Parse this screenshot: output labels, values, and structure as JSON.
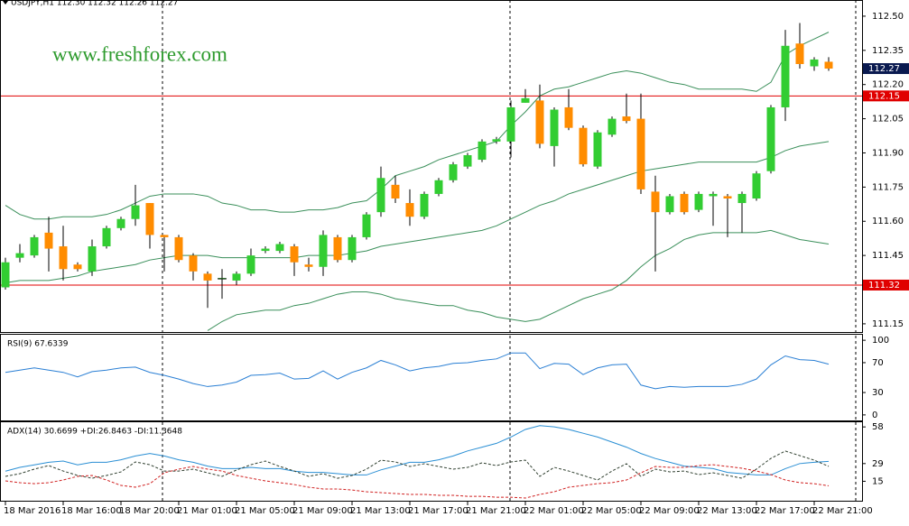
{
  "chart_data": [
    {
      "type": "candlestick",
      "title": "USDJPY,H1  112.30 112.32 112.26 112.27",
      "watermark": "www.freshforex.com",
      "categories": [
        "18 Mar 2016",
        null,
        null,
        null,
        "18 Mar 16:00",
        null,
        null,
        null,
        "18 Mar 20:00",
        null,
        null,
        null,
        "21 Mar 01:00",
        null,
        null,
        null,
        "21 Mar 05:00",
        null,
        null,
        null,
        "21 Mar 09:00",
        null,
        null,
        null,
        "21 Mar 13:00",
        null,
        null,
        null,
        "21 Mar 17:00",
        null,
        null,
        null,
        "21 Mar 21:00",
        null,
        null,
        null,
        "22 Mar 01:00",
        null,
        null,
        null,
        "22 Mar 05:00",
        null,
        null,
        null,
        "22 Mar 09:00",
        null,
        null,
        null,
        "22 Mar 13:00",
        null,
        null,
        null,
        "22 Mar 17:00",
        null,
        null,
        null,
        "22 Mar 21:00",
        null
      ],
      "open": [
        111.31,
        111.44,
        111.45,
        111.55,
        111.49,
        111.41,
        111.38,
        111.49,
        111.57,
        111.61,
        111.68,
        111.54,
        111.53,
        111.45,
        111.37,
        111.35,
        111.34,
        111.37,
        111.47,
        111.47,
        111.49,
        111.41,
        111.4,
        111.53,
        111.43,
        111.53,
        111.64,
        111.76,
        111.68,
        111.62,
        111.72,
        111.78,
        111.84,
        111.87,
        111.95,
        111.95,
        112.12,
        112.13,
        111.93,
        112.1,
        112.01,
        111.84,
        111.98,
        112.06,
        112.05,
        111.73,
        111.64,
        111.72,
        111.65,
        111.71,
        111.71,
        111.68,
        111.7,
        111.82,
        112.1,
        112.38,
        112.28,
        112.3
      ],
      "high": [
        111.44,
        111.5,
        111.54,
        111.62,
        111.58,
        111.42,
        111.52,
        111.58,
        111.62,
        111.76,
        111.68,
        111.54,
        111.54,
        111.46,
        111.38,
        111.39,
        111.38,
        111.48,
        111.49,
        111.51,
        111.5,
        111.44,
        111.56,
        111.54,
        111.54,
        111.64,
        111.84,
        111.8,
        111.74,
        111.73,
        111.79,
        111.86,
        111.9,
        111.96,
        111.97,
        112.13,
        112.18,
        112.2,
        112.1,
        112.18,
        112.02,
        112.0,
        112.06,
        112.16,
        112.16,
        111.8,
        111.72,
        111.73,
        111.73,
        111.73,
        111.72,
        111.73,
        111.82,
        112.11,
        112.44,
        112.47,
        112.32,
        112.32
      ],
      "low": [
        111.3,
        111.42,
        111.44,
        111.38,
        111.34,
        111.38,
        111.36,
        111.48,
        111.56,
        111.58,
        111.48,
        111.38,
        111.42,
        111.34,
        111.22,
        111.26,
        111.32,
        111.36,
        111.46,
        111.46,
        111.36,
        111.38,
        111.36,
        111.42,
        111.42,
        111.52,
        111.62,
        111.68,
        111.58,
        111.61,
        111.71,
        111.77,
        111.83,
        111.86,
        111.94,
        111.88,
        112.12,
        111.92,
        111.84,
        112.0,
        111.84,
        111.83,
        111.97,
        112.03,
        111.72,
        111.38,
        111.63,
        111.63,
        111.64,
        111.58,
        111.53,
        111.55,
        111.69,
        111.81,
        112.04,
        112.27,
        112.26,
        112.26
      ],
      "close": [
        111.42,
        111.46,
        111.53,
        111.48,
        111.39,
        111.39,
        111.49,
        111.57,
        111.61,
        111.67,
        111.54,
        111.53,
        111.43,
        111.38,
        111.34,
        111.35,
        111.37,
        111.45,
        111.48,
        111.5,
        111.42,
        111.4,
        111.54,
        111.43,
        111.53,
        111.63,
        111.79,
        111.7,
        111.62,
        111.72,
        111.78,
        111.85,
        111.89,
        111.95,
        111.96,
        112.1,
        112.14,
        111.94,
        112.09,
        112.01,
        111.85,
        111.99,
        112.05,
        112.04,
        111.74,
        111.64,
        111.71,
        111.64,
        111.72,
        111.72,
        111.7,
        111.72,
        111.81,
        112.1,
        112.37,
        112.29,
        112.31,
        112.27
      ],
      "up_color": "#32cd32",
      "down_color": "#ff8c00",
      "bands": [
        {
          "color": "#3a8f5a",
          "values": [
            111.67,
            111.63,
            111.61,
            111.61,
            111.62,
            111.62,
            111.62,
            111.63,
            111.65,
            111.68,
            111.71,
            111.72,
            111.72,
            111.72,
            111.71,
            111.68,
            111.67,
            111.65,
            111.65,
            111.64,
            111.64,
            111.65,
            111.65,
            111.66,
            111.68,
            111.69,
            111.74,
            111.8,
            111.82,
            111.84,
            111.87,
            111.89,
            111.91,
            111.93,
            111.95,
            112.02,
            112.08,
            112.15,
            112.18,
            112.19,
            112.21,
            112.23,
            112.25,
            112.26,
            112.25,
            112.23,
            112.21,
            112.2,
            112.18,
            112.18,
            112.18,
            112.18,
            112.17,
            112.21,
            112.33,
            112.37,
            112.4,
            112.43
          ]
        },
        {
          "color": "#3a8f5a",
          "values": [
            111.33,
            111.34,
            111.34,
            111.34,
            111.35,
            111.36,
            111.38,
            111.39,
            111.4,
            111.41,
            111.43,
            111.44,
            111.45,
            111.45,
            111.45,
            111.44,
            111.44,
            111.44,
            111.44,
            111.44,
            111.44,
            111.45,
            111.45,
            111.45,
            111.46,
            111.47,
            111.49,
            111.5,
            111.51,
            111.52,
            111.53,
            111.54,
            111.55,
            111.56,
            111.58,
            111.61,
            111.64,
            111.67,
            111.69,
            111.72,
            111.74,
            111.76,
            111.78,
            111.8,
            111.82,
            111.83,
            111.84,
            111.85,
            111.86,
            111.86,
            111.86,
            111.86,
            111.86,
            111.88,
            111.91,
            111.93,
            111.94,
            111.95
          ]
        },
        {
          "color": "#3a8f5a",
          "values": [
            null,
            null,
            null,
            null,
            null,
            null,
            null,
            null,
            null,
            null,
            null,
            null,
            null,
            null,
            111.12,
            111.16,
            111.19,
            111.2,
            111.21,
            111.21,
            111.23,
            111.24,
            111.26,
            111.28,
            111.29,
            111.29,
            111.28,
            111.26,
            111.25,
            111.24,
            111.23,
            111.23,
            111.21,
            111.2,
            111.18,
            111.17,
            111.16,
            111.17,
            111.2,
            111.23,
            111.26,
            111.28,
            111.3,
            111.34,
            111.4,
            111.45,
            111.48,
            111.52,
            111.54,
            111.55,
            111.55,
            111.55,
            111.55,
            111.56,
            111.54,
            111.52,
            111.51,
            111.5
          ]
        }
      ],
      "levels": [
        112.15,
        111.32
      ],
      "level_color": "#e00000",
      "ylim": [
        111.114,
        112.571
      ],
      "yticks": [
        111.15,
        111.45,
        {
          "value": 111.6,
          "label": "111.60"
        },
        111.75,
        {
          "value": 111.9,
          "label": "111.90"
        },
        112.05,
        {
          "value": 112.2,
          "label": "112.20"
        },
        112.35,
        {
          "value": 112.5,
          "label": "112.50"
        }
      ]
    },
    {
      "type": "line",
      "title": "RSI(9) 67.6339",
      "series": [
        {
          "color": "#2a7fd4",
          "values": [
            57,
            60,
            63,
            60,
            57,
            51,
            58,
            60,
            63,
            64,
            57,
            53,
            48,
            42,
            38,
            40,
            44,
            53,
            54,
            56,
            48,
            49,
            59,
            48,
            57,
            63,
            73,
            67,
            59,
            63,
            65,
            69,
            70,
            73,
            75,
            83,
            83,
            62,
            69,
            68,
            54,
            63,
            67,
            68,
            40,
            35,
            38,
            37,
            38,
            38,
            38,
            41,
            48,
            67,
            79,
            74,
            73,
            68
          ]
        }
      ],
      "ylim": [
        -7.4,
        107.4
      ],
      "yticks": [
        0,
        30,
        70,
        100
      ]
    },
    {
      "type": "line",
      "title": "ADX(14) 30.6699 +DI:26.8463 -DI:11.3648",
      "series": [
        {
          "color": "#2a8fd4",
          "dashed": false,
          "values": [
            23,
            26,
            28,
            30,
            31,
            28,
            30,
            30,
            32,
            35,
            37,
            35,
            32,
            30,
            27,
            25,
            25,
            26,
            25,
            25,
            23,
            22,
            22,
            21,
            20,
            20,
            24,
            27,
            30,
            30,
            32,
            35,
            39,
            42,
            45,
            50,
            56,
            59,
            58,
            56,
            53,
            50,
            46,
            42,
            37,
            33,
            30,
            27,
            26,
            25,
            22,
            21,
            20,
            20,
            25,
            29,
            30,
            30.7
          ]
        },
        {
          "color": "#2f3f2f",
          "dashed": true,
          "values": [
            18.9,
            21,
            24.6,
            27.4,
            23.1,
            19.6,
            17.4,
            19.6,
            22.4,
            30.3,
            28.1,
            23.1,
            23.1,
            24.6,
            21.7,
            18.9,
            23.9,
            28.1,
            31,
            26.7,
            23.1,
            18.9,
            21,
            17.4,
            19.6,
            24.6,
            31.7,
            30.3,
            26.7,
            28.9,
            26.7,
            24.6,
            26,
            29.6,
            27.4,
            30.3,
            31.7,
            18.9,
            26,
            23.1,
            19.6,
            16,
            23.1,
            28.9,
            18.9,
            24.6,
            22.4,
            23.1,
            20.3,
            21.7,
            19.6,
            17.4,
            24.6,
            33.1,
            38.9,
            35.3,
            31.7,
            26.8
          ]
        },
        {
          "color": "#d02020",
          "dashed": true,
          "values": [
            15.3,
            13.9,
            13.1,
            13.9,
            16,
            18.9,
            19.6,
            16,
            11.7,
            10.3,
            13.1,
            21.7,
            24.6,
            26.7,
            24.6,
            23.1,
            19.6,
            17.4,
            15.3,
            13.9,
            12.4,
            10.3,
            8.9,
            8.9,
            8.1,
            6.7,
            6,
            5.3,
            4.6,
            4.6,
            3.9,
            3.9,
            3.1,
            3.1,
            2.4,
            2.4,
            1.7,
            4.6,
            6.7,
            10.3,
            11.7,
            13.1,
            13.9,
            16,
            21.7,
            26.7,
            26,
            26,
            27.4,
            28.1,
            26.7,
            25.3,
            23.1,
            20.3,
            16,
            13.9,
            13.1,
            11.4
          ]
        }
      ],
      "ylim": [
        -0.4,
        61.7
      ],
      "yticks": [
        15,
        29,
        58
      ]
    }
  ]
}
